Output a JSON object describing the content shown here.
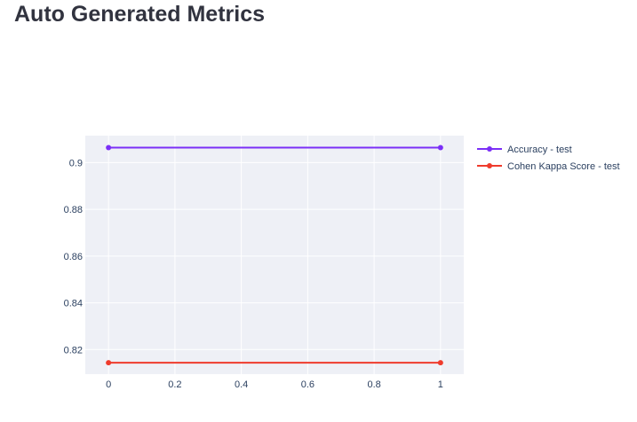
{
  "page": {
    "title": "Auto Generated Metrics"
  },
  "chart_data": {
    "type": "line",
    "title": "",
    "xlabel": "",
    "ylabel": "",
    "x": [
      0,
      1
    ],
    "xlim": [
      -0.07,
      1.07
    ],
    "ylim": [
      0.8095,
      0.9115
    ],
    "x_ticks": [
      0,
      0.2,
      0.4,
      0.6,
      0.8,
      1
    ],
    "x_tick_labels": [
      "0",
      "0.2",
      "0.4",
      "0.6",
      "0.8",
      "1"
    ],
    "y_ticks": [
      0.82,
      0.84,
      0.86,
      0.88,
      0.9
    ],
    "y_tick_labels": [
      "0.82",
      "0.84",
      "0.86",
      "0.88",
      "0.9"
    ],
    "grid": true,
    "legend_position": "right-top",
    "plot_background": "#eef0f6",
    "grid_color": "#ffffff",
    "series": [
      {
        "name": "Accuracy -  test",
        "values": [
          0.9064,
          0.9064
        ],
        "color": "#7b2ff7",
        "marker": "circle"
      },
      {
        "name": "Cohen Kappa Score -  test",
        "values": [
          0.8144,
          0.8144
        ],
        "color": "#ef3b2c",
        "marker": "circle"
      }
    ]
  }
}
